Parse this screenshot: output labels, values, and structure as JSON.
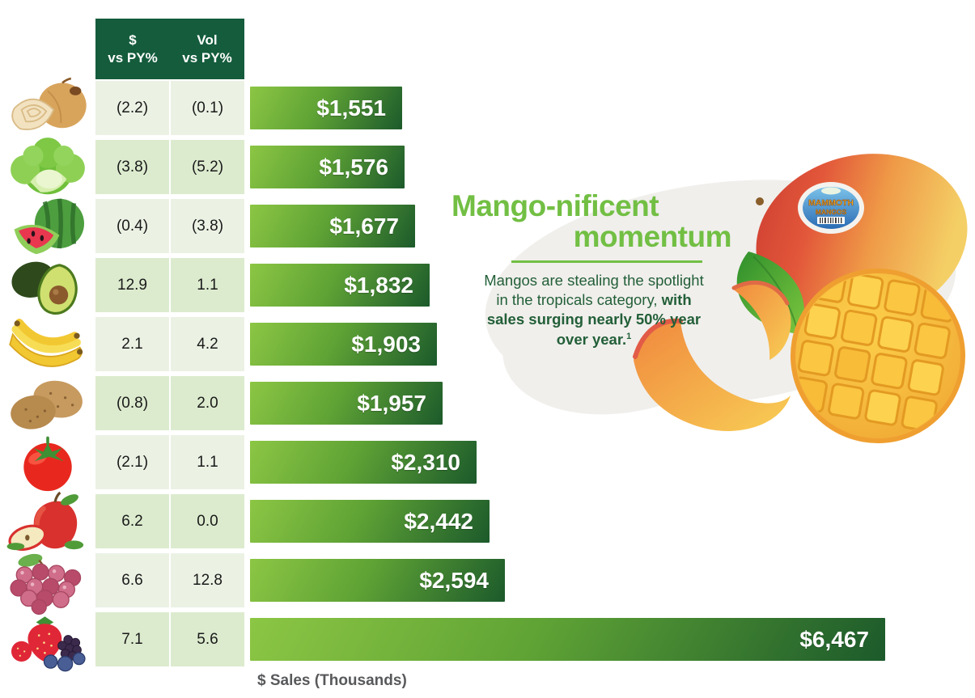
{
  "table": {
    "header": {
      "col1_line1": "$",
      "col1_line2": "vs PY%",
      "col2_line1": "Vol",
      "col2_line2": "vs PY%"
    },
    "rows": [
      {
        "icon": "onion",
        "dollar_vs_py": "(2.2)",
        "vol_vs_py": "(0.1)",
        "sales_label": "$1,551",
        "sales": 1551
      },
      {
        "icon": "lettuce",
        "dollar_vs_py": "(3.8)",
        "vol_vs_py": "(5.2)",
        "sales_label": "$1,576",
        "sales": 1576
      },
      {
        "icon": "watermelon",
        "dollar_vs_py": "(0.4)",
        "vol_vs_py": "(3.8)",
        "sales_label": "$1,677",
        "sales": 1677
      },
      {
        "icon": "avocado",
        "dollar_vs_py": "12.9",
        "vol_vs_py": "1.1",
        "sales_label": "$1,832",
        "sales": 1832
      },
      {
        "icon": "bananas",
        "dollar_vs_py": "2.1",
        "vol_vs_py": "4.2",
        "sales_label": "$1,903",
        "sales": 1903
      },
      {
        "icon": "potatoes",
        "dollar_vs_py": "(0.8)",
        "vol_vs_py": "2.0",
        "sales_label": "$1,957",
        "sales": 1957
      },
      {
        "icon": "tomato",
        "dollar_vs_py": "(2.1)",
        "vol_vs_py": "1.1",
        "sales_label": "$2,310",
        "sales": 2310
      },
      {
        "icon": "apple",
        "dollar_vs_py": "6.2",
        "vol_vs_py": "0.0",
        "sales_label": "$2,442",
        "sales": 2442
      },
      {
        "icon": "grapes",
        "dollar_vs_py": "6.6",
        "vol_vs_py": "12.8",
        "sales_label": "$2,594",
        "sales": 2594
      },
      {
        "icon": "berries",
        "dollar_vs_py": "7.1",
        "vol_vs_py": "5.6",
        "sales_label": "$6,467",
        "sales": 6467
      }
    ]
  },
  "chart_data": {
    "type": "bar",
    "orientation": "horizontal",
    "title": "",
    "xlabel": "$ Sales (Thousands)",
    "categories": [
      "onions",
      "lettuce",
      "watermelon",
      "avocados",
      "bananas",
      "potatoes",
      "tomatoes",
      "apples",
      "grapes",
      "berries"
    ],
    "series": [
      {
        "name": "$ vs PY%",
        "values": [
          -2.2,
          -3.8,
          -0.4,
          12.9,
          2.1,
          -0.8,
          -2.1,
          6.2,
          6.6,
          7.1
        ]
      },
      {
        "name": "Vol vs PY%",
        "values": [
          -0.1,
          -5.2,
          -3.8,
          1.1,
          4.2,
          2.0,
          1.1,
          0.0,
          12.8,
          5.6
        ]
      },
      {
        "name": "$ Sales (Thousands)",
        "values": [
          1551,
          1576,
          1677,
          1832,
          1903,
          1957,
          2310,
          2442,
          2594,
          6467
        ]
      }
    ],
    "value_labels": [
      "$1,551",
      "$1,576",
      "$1,677",
      "$1,832",
      "$1,903",
      "$1,957",
      "$2,310",
      "$2,442",
      "$2,594",
      "$6,467"
    ],
    "xlim": [
      0,
      6467
    ],
    "grid": false,
    "legend": false
  },
  "axis_label": "$ Sales (Thousands)",
  "callout": {
    "title_line1": "Mango-nificent",
    "title_line2": "momentum",
    "body_lines": [
      {
        "segments": [
          {
            "text": "Mangos are stealing the spotlight",
            "bold": false
          }
        ]
      },
      {
        "segments": [
          {
            "text": "in the tropicals category, ",
            "bold": false
          },
          {
            "text": "with",
            "bold": true
          }
        ]
      },
      {
        "segments": [
          {
            "text": "sales surging nearly 50% year",
            "bold": true
          }
        ]
      },
      {
        "segments": [
          {
            "text": "over year.",
            "bold": true
          },
          {
            "text": "1",
            "bold": true,
            "sup": true
          }
        ]
      }
    ]
  },
  "sticker": {
    "line1": "MAMMOTH",
    "line2": "MANGOS"
  },
  "colors": {
    "header_green": "#145c3c",
    "row_light": "#ebf2e4",
    "row_dark": "#dcebce",
    "bar_light": "#8cc644",
    "bar_mid": "#5fa335",
    "bar_dark": "#1c5a2b",
    "title_green": "#72bf44",
    "body_green": "#235f38",
    "axis_gray": "#58595b"
  }
}
